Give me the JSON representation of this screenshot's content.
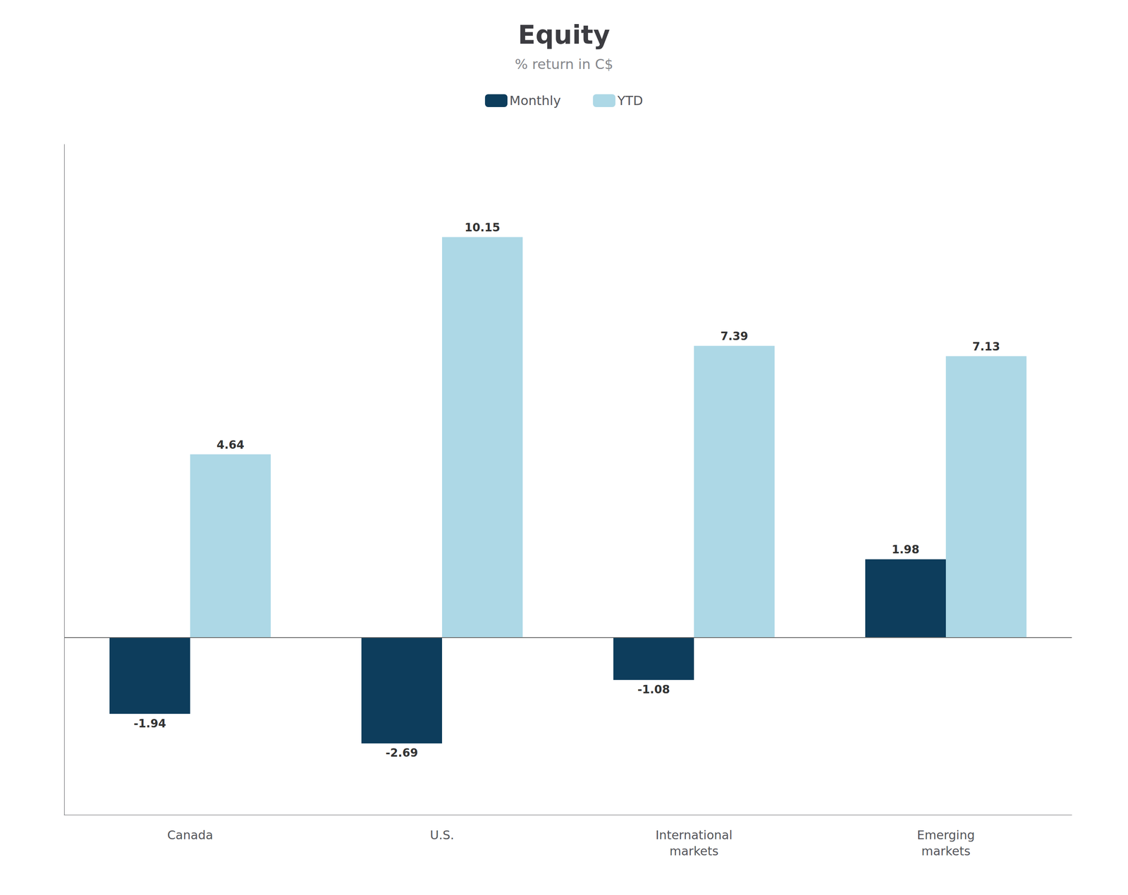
{
  "chart_data": {
    "type": "bar",
    "title": "Equity",
    "subtitle": "% return in C$",
    "categories": [
      "Canada",
      "U.S.",
      "International\nmarkets",
      "Emerging\nmarkets"
    ],
    "series": [
      {
        "name": "Monthly",
        "color": "#0d3d5c",
        "values": [
          -1.94,
          -2.69,
          -1.08,
          1.98
        ]
      },
      {
        "name": "YTD",
        "color": "#add8e6",
        "values": [
          4.64,
          10.15,
          7.39,
          7.13
        ]
      }
    ],
    "ylim": [
      -4.5,
      12.5
    ],
    "grid": false,
    "legend": "top",
    "data_labels": true,
    "tick_labels": "x"
  }
}
